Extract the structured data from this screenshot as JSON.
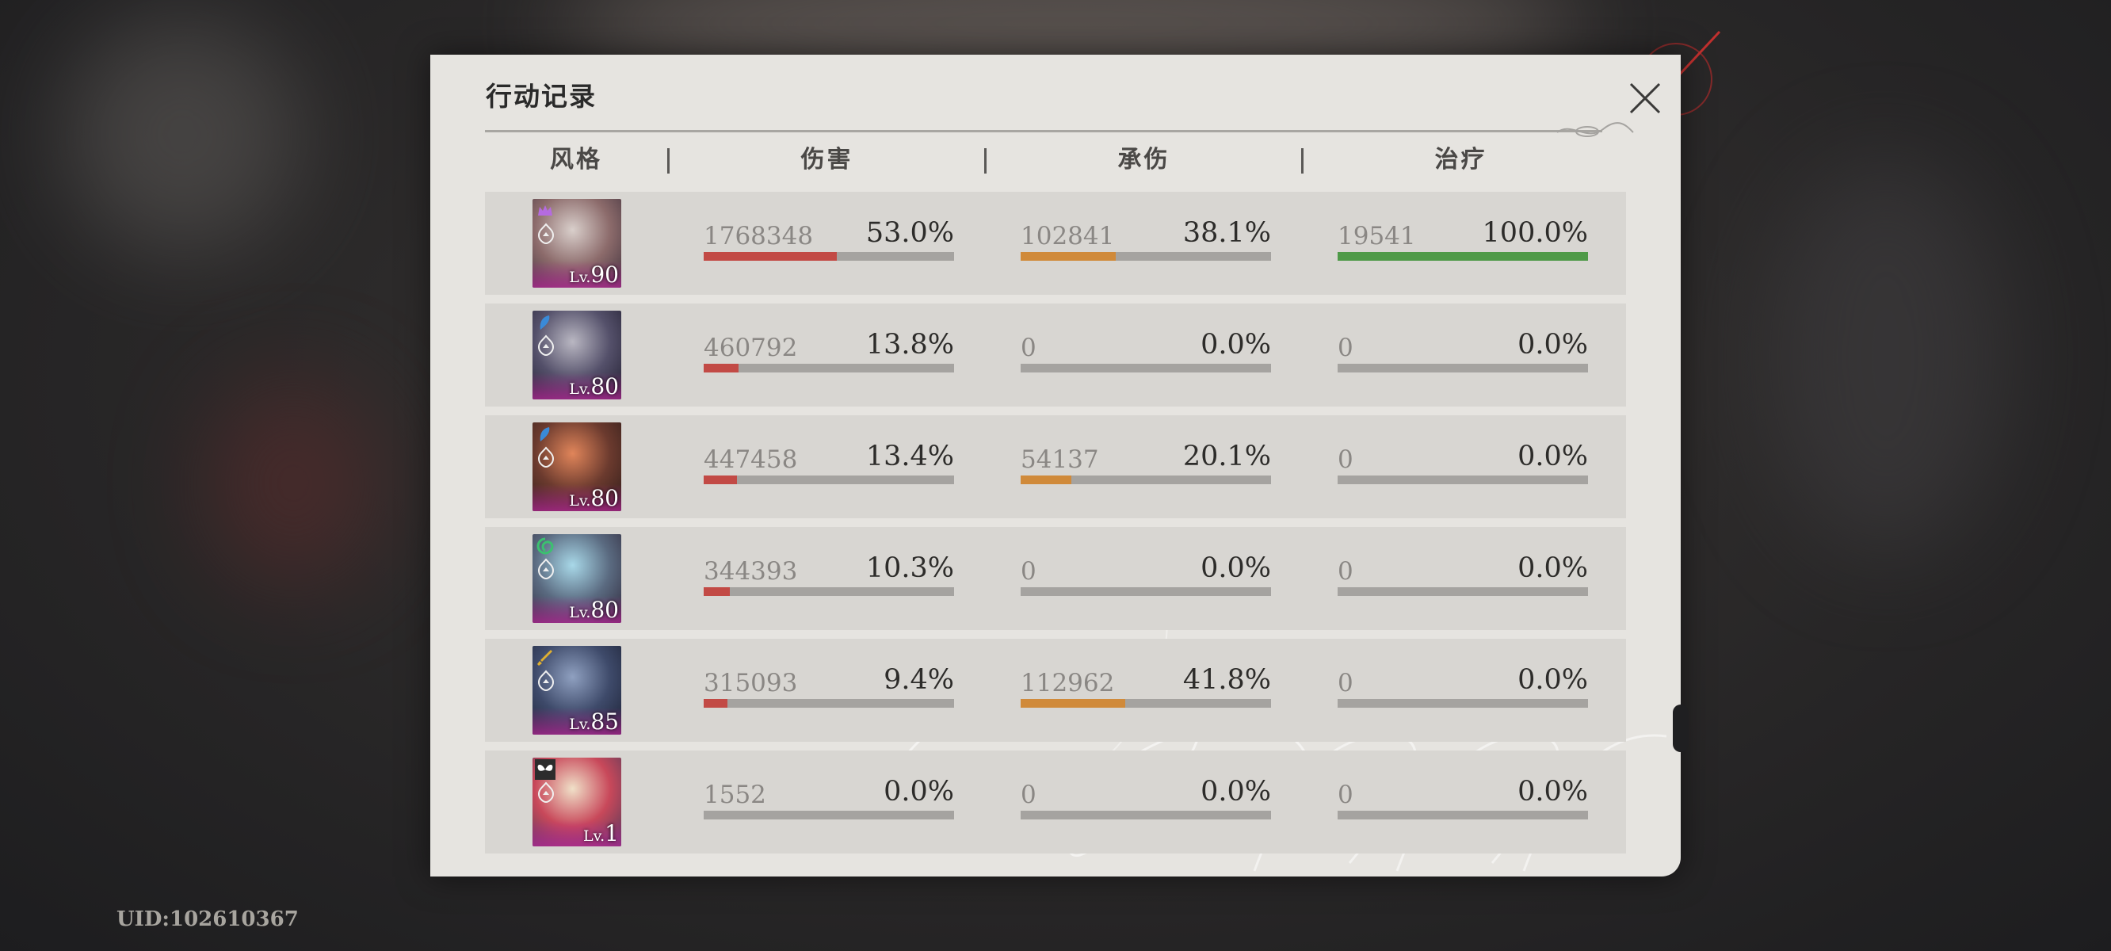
{
  "title": "行动记录",
  "headers": {
    "style": "风格",
    "damage": "伤害",
    "taken": "承伤",
    "heal": "治疗"
  },
  "colors": {
    "damage": "#c24a45",
    "taken": "#d08a3a",
    "heal": "#4f9a48"
  },
  "rows": [
    {
      "level_prefix": "Lv.",
      "level": "90",
      "badge_icon": "crown-icon",
      "portrait_colors": [
        "#d9cfcb",
        "#8c6b6b",
        "#3c2e3a"
      ],
      "damage": {
        "value": "1768348",
        "percent": "53.0%",
        "fraction": 0.53
      },
      "taken": {
        "value": "102841",
        "percent": "38.1%",
        "fraction": 0.381
      },
      "heal": {
        "value": "19541",
        "percent": "100.0%",
        "fraction": 1.0
      }
    },
    {
      "level_prefix": "Lv.",
      "level": "80",
      "badge_icon": "feather-icon",
      "portrait_colors": [
        "#b9b7c2",
        "#54506a",
        "#1e1b2c"
      ],
      "damage": {
        "value": "460792",
        "percent": "13.8%",
        "fraction": 0.138
      },
      "taken": {
        "value": "0",
        "percent": "0.0%",
        "fraction": 0
      },
      "heal": {
        "value": "0",
        "percent": "0.0%",
        "fraction": 0
      }
    },
    {
      "level_prefix": "Lv.",
      "level": "80",
      "badge_icon": "feather-icon",
      "portrait_colors": [
        "#e0855a",
        "#6b3a2e",
        "#2a1a18"
      ],
      "damage": {
        "value": "447458",
        "percent": "13.4%",
        "fraction": 0.134
      },
      "taken": {
        "value": "54137",
        "percent": "20.1%",
        "fraction": 0.201
      },
      "heal": {
        "value": "0",
        "percent": "0.0%",
        "fraction": 0
      }
    },
    {
      "level_prefix": "Lv.",
      "level": "80",
      "badge_icon": "swirl-icon",
      "portrait_colors": [
        "#a8d8e8",
        "#5a6a80",
        "#2c2436"
      ],
      "damage": {
        "value": "344393",
        "percent": "10.3%",
        "fraction": 0.103
      },
      "taken": {
        "value": "0",
        "percent": "0.0%",
        "fraction": 0
      },
      "heal": {
        "value": "0",
        "percent": "0.0%",
        "fraction": 0
      }
    },
    {
      "level_prefix": "Lv.",
      "level": "85",
      "badge_icon": "sword-icon",
      "portrait_colors": [
        "#8fa0c0",
        "#3e4a6a",
        "#1a1e30"
      ],
      "damage": {
        "value": "315093",
        "percent": "9.4%",
        "fraction": 0.094
      },
      "taken": {
        "value": "112962",
        "percent": "41.8%",
        "fraction": 0.418
      },
      "heal": {
        "value": "0",
        "percent": "0.0%",
        "fraction": 0
      }
    },
    {
      "level_prefix": "Lv.",
      "level": "1",
      "badge_icon": "butterfly-icon",
      "portrait_colors": [
        "#f0e0c8",
        "#c8485a",
        "#4a3a5a"
      ],
      "damage": {
        "value": "1552",
        "percent": "0.0%",
        "fraction": 0
      },
      "taken": {
        "value": "0",
        "percent": "0.0%",
        "fraction": 0
      },
      "heal": {
        "value": "0",
        "percent": "0.0%",
        "fraction": 0
      }
    }
  ],
  "uid": "UID:102610367"
}
